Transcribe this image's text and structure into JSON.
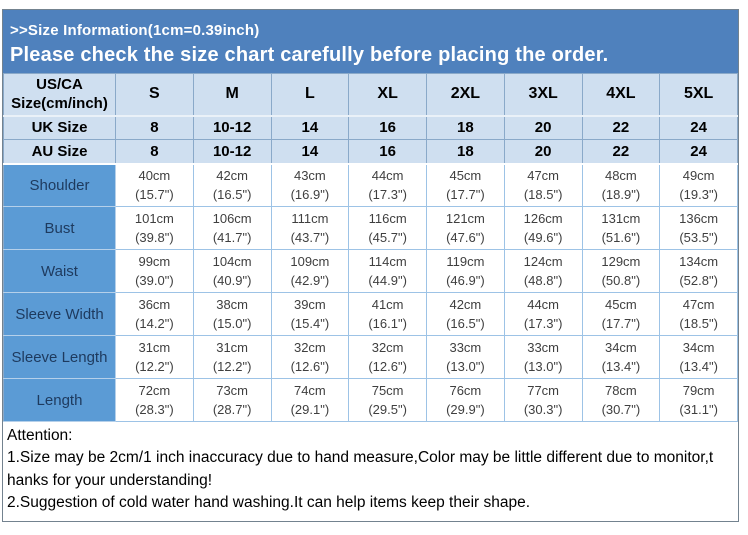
{
  "banner": {
    "line1": ">>Size Information(1cm=0.39inch)",
    "line2": "Please check the size chart carefully before placing the order."
  },
  "table": {
    "corner_line1": "US/CA",
    "corner_line2": "Size(cm/inch)",
    "size_headers": [
      "S",
      "M",
      "L",
      "XL",
      "2XL",
      "3XL",
      "4XL",
      "5XL"
    ],
    "size_rows": [
      {
        "label": "UK Size",
        "values": [
          "8",
          "10-12",
          "14",
          "16",
          "18",
          "20",
          "22",
          "24"
        ]
      },
      {
        "label": "AU Size",
        "values": [
          "8",
          "10-12",
          "14",
          "16",
          "18",
          "20",
          "22",
          "24"
        ]
      }
    ],
    "measure_rows": [
      {
        "label": "Shoulder",
        "cells": [
          {
            "cm": "40cm",
            "inch": "(15.7\")"
          },
          {
            "cm": "42cm",
            "inch": "(16.5\")"
          },
          {
            "cm": "43cm",
            "inch": "(16.9\")"
          },
          {
            "cm": "44cm",
            "inch": "(17.3\")"
          },
          {
            "cm": "45cm",
            "inch": "(17.7\")"
          },
          {
            "cm": "47cm",
            "inch": "(18.5\")"
          },
          {
            "cm": "48cm",
            "inch": "(18.9\")"
          },
          {
            "cm": "49cm",
            "inch": "(19.3\")"
          }
        ]
      },
      {
        "label": "Bust",
        "cells": [
          {
            "cm": "101cm",
            "inch": "(39.8\")"
          },
          {
            "cm": "106cm",
            "inch": "(41.7\")"
          },
          {
            "cm": "111cm",
            "inch": "(43.7\")"
          },
          {
            "cm": "116cm",
            "inch": "(45.7\")"
          },
          {
            "cm": "121cm",
            "inch": "(47.6\")"
          },
          {
            "cm": "126cm",
            "inch": "(49.6\")"
          },
          {
            "cm": "131cm",
            "inch": "(51.6\")"
          },
          {
            "cm": "136cm",
            "inch": "(53.5\")"
          }
        ]
      },
      {
        "label": "Waist",
        "cells": [
          {
            "cm": "99cm",
            "inch": "(39.0\")"
          },
          {
            "cm": "104cm",
            "inch": "(40.9\")"
          },
          {
            "cm": "109cm",
            "inch": "(42.9\")"
          },
          {
            "cm": "114cm",
            "inch": "(44.9\")"
          },
          {
            "cm": "119cm",
            "inch": "(46.9\")"
          },
          {
            "cm": "124cm",
            "inch": "(48.8\")"
          },
          {
            "cm": "129cm",
            "inch": "(50.8\")"
          },
          {
            "cm": "134cm",
            "inch": "(52.8\")"
          }
        ]
      },
      {
        "label": "Sleeve Width",
        "cells": [
          {
            "cm": "36cm",
            "inch": "(14.2\")"
          },
          {
            "cm": "38cm",
            "inch": "(15.0\")"
          },
          {
            "cm": "39cm",
            "inch": "(15.4\")"
          },
          {
            "cm": "41cm",
            "inch": "(16.1\")"
          },
          {
            "cm": "42cm",
            "inch": "(16.5\")"
          },
          {
            "cm": "44cm",
            "inch": "(17.3\")"
          },
          {
            "cm": "45cm",
            "inch": "(17.7\")"
          },
          {
            "cm": "47cm",
            "inch": "(18.5\")"
          }
        ]
      },
      {
        "label": "Sleeve Length",
        "cells": [
          {
            "cm": "31cm",
            "inch": "(12.2\")"
          },
          {
            "cm": "31cm",
            "inch": "(12.2\")"
          },
          {
            "cm": "32cm",
            "inch": "(12.6\")"
          },
          {
            "cm": "32cm",
            "inch": "(12.6\")"
          },
          {
            "cm": "33cm",
            "inch": "(13.0\")"
          },
          {
            "cm": "33cm",
            "inch": "(13.0\")"
          },
          {
            "cm": "34cm",
            "inch": "(13.4\")"
          },
          {
            "cm": "34cm",
            "inch": "(13.4\")"
          }
        ]
      },
      {
        "label": "Length",
        "cells": [
          {
            "cm": "72cm",
            "inch": "(28.3\")"
          },
          {
            "cm": "73cm",
            "inch": "(28.7\")"
          },
          {
            "cm": "74cm",
            "inch": "(29.1\")"
          },
          {
            "cm": "75cm",
            "inch": "(29.5\")"
          },
          {
            "cm": "76cm",
            "inch": "(29.9\")"
          },
          {
            "cm": "77cm",
            "inch": "(30.3\")"
          },
          {
            "cm": "78cm",
            "inch": "(30.7\")"
          },
          {
            "cm": "79cm",
            "inch": "(31.1\")"
          }
        ]
      }
    ]
  },
  "attention": {
    "title": "Attention:",
    "lines": [
      "1.Size may be 2cm/1 inch inaccuracy due to hand measure,Color may be little different due to monitor,t",
      "hanks for your understanding!",
      "2.Suggestion of cold water hand washing.It can help items keep their shape."
    ]
  },
  "colors": {
    "banner_bg": "#4f81bd",
    "banner_text": "#ffffff",
    "header_bg": "#cfdff0",
    "header_text": "#000000",
    "label_bg": "#5b9bd5",
    "label_text": "#1e3a5e",
    "cell_bg": "#ffffff",
    "cell_text": "#3f3f3f",
    "grid_header": "#8aa9c9",
    "grid_data": "#9dc3e6",
    "frame_border": "#73828f"
  }
}
